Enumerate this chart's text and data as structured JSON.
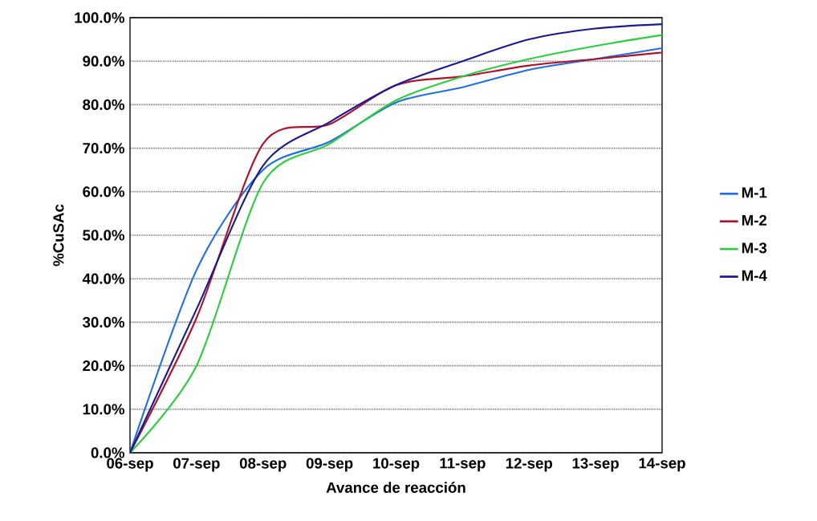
{
  "chart_data": {
    "type": "line",
    "xlabel": "Avance de reacción",
    "ylabel": "%CuSAc",
    "categories": [
      "06-sep",
      "07-sep",
      "08-sep",
      "09-sep",
      "10-sep",
      "11-sep",
      "12-sep",
      "13-sep",
      "14-sep"
    ],
    "series": [
      {
        "name": "M-1",
        "color": "#1f6fe0",
        "values": [
          0,
          42,
          65,
          71.5,
          80.5,
          84,
          88,
          90.5,
          93
        ]
      },
      {
        "name": "M-2",
        "color": "#b0102a",
        "values": [
          0,
          31,
          71,
          75.5,
          84.5,
          86.5,
          89,
          90.5,
          92
        ]
      },
      {
        "name": "M-3",
        "color": "#2ecc40",
        "values": [
          0,
          20,
          62,
          71,
          81,
          86.5,
          90.5,
          93.5,
          96
        ]
      },
      {
        "name": "M-4",
        "color": "#1a1a8c",
        "values": [
          0,
          33,
          66,
          76,
          84.5,
          90,
          95,
          97.5,
          98.5
        ]
      }
    ],
    "ylim": [
      0,
      100
    ],
    "yticks": [
      {
        "value": 0,
        "label": "0.0%"
      },
      {
        "value": 10,
        "label": "10.0%"
      },
      {
        "value": 20,
        "label": "20.0%"
      },
      {
        "value": 30,
        "label": "30.0%"
      },
      {
        "value": 40,
        "label": "40.0%"
      },
      {
        "value": 50,
        "label": "50.0%"
      },
      {
        "value": 60,
        "label": "60.0%"
      },
      {
        "value": 70,
        "label": "70.0%"
      },
      {
        "value": 80,
        "label": "80.0%"
      },
      {
        "value": 90,
        "label": "90.0%"
      },
      {
        "value": 100,
        "label": "100.0%"
      }
    ],
    "grid": "y",
    "legend": "right",
    "marker": "none",
    "line_style": "solid"
  }
}
